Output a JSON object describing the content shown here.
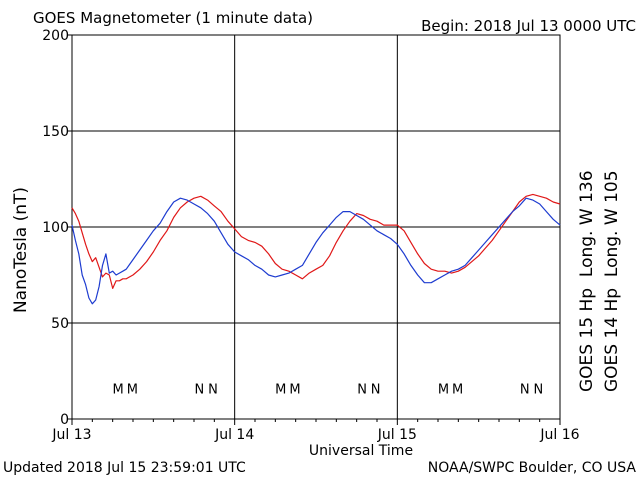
{
  "header": {
    "title": "GOES Magnetometer (1 minute data)",
    "begin": "Begin:  2018 Jul 13 0000 UTC"
  },
  "footer": {
    "updated": "Updated 2018 Jul 15 23:59:01 UTC",
    "credit": "NOAA/SWPC Boulder, CO USA"
  },
  "colors": {
    "goes15": "#e01818",
    "goes14": "#1e3cd0",
    "axis": "#000000"
  },
  "chart_data": {
    "type": "line",
    "title": "GOES Magnetometer (1 minute data)",
    "xlabel": "Universal Time",
    "ylabel": "NanoTesla (nT)",
    "xlim": [
      0,
      72
    ],
    "x_unit": "hours UTC from 2018 Jul 13 0000",
    "ylim": [
      0,
      200
    ],
    "yticks": [
      0,
      50,
      100,
      150,
      200
    ],
    "xtick_labels": [
      "Jul 13",
      "Jul 14",
      "Jul 15",
      "Jul 16"
    ],
    "xtick_hours": [
      0,
      24,
      48,
      72
    ],
    "grid": true,
    "legend_placement": "right side, vertical",
    "series": [
      {
        "name": "GOES 15 Hp  Long. W 136",
        "color": "#e01818",
        "x": [
          0,
          0.5,
          1,
          1.5,
          2,
          2.5,
          3,
          3.5,
          4,
          4.5,
          5,
          5.5,
          6,
          6.5,
          7,
          7.5,
          8,
          9,
          10,
          11,
          12,
          13,
          14,
          15,
          16,
          17,
          18,
          19,
          20,
          21,
          22,
          23,
          24,
          25,
          26,
          27,
          28,
          29,
          30,
          31,
          32,
          33,
          34,
          35,
          36,
          37,
          38,
          39,
          40,
          41,
          42,
          43,
          44,
          45,
          46,
          47,
          48,
          49,
          50,
          51,
          52,
          53,
          54,
          55,
          56,
          57,
          58,
          59,
          60,
          61,
          62,
          63,
          64,
          65,
          66,
          67,
          68,
          69,
          70,
          71,
          72
        ],
        "y": [
          110,
          107,
          103,
          97,
          91,
          86,
          82,
          84,
          79,
          74,
          76,
          75,
          68,
          72,
          72,
          73,
          73,
          75,
          78,
          82,
          87,
          93,
          98,
          105,
          110,
          113,
          115,
          116,
          114,
          111,
          108,
          103,
          99,
          95,
          93,
          92,
          90,
          86,
          81,
          78,
          77,
          75,
          73,
          76,
          78,
          80,
          85,
          92,
          98,
          103,
          107,
          106,
          104,
          103,
          101,
          101,
          101,
          98,
          92,
          86,
          81,
          78,
          77,
          77,
          76,
          77,
          79,
          82,
          85,
          89,
          93,
          98,
          103,
          108,
          113,
          116,
          117,
          116,
          115,
          113,
          112
        ]
      },
      {
        "name": "GOES 14 Hp  Long. W 105",
        "color": "#1e3cd0",
        "x": [
          0,
          0.5,
          1,
          1.5,
          2,
          2.5,
          3,
          3.5,
          4,
          4.5,
          5,
          5.5,
          6,
          6.5,
          7,
          7.5,
          8,
          9,
          10,
          11,
          12,
          13,
          14,
          15,
          16,
          17,
          18,
          19,
          20,
          21,
          22,
          23,
          24,
          25,
          26,
          27,
          28,
          29,
          30,
          31,
          32,
          33,
          34,
          35,
          36,
          37,
          38,
          39,
          40,
          41,
          42,
          43,
          44,
          45,
          46,
          47,
          48,
          49,
          50,
          51,
          52,
          53,
          54,
          55,
          56,
          57,
          58,
          59,
          60,
          61,
          62,
          63,
          64,
          65,
          66,
          67,
          68,
          69,
          70,
          71,
          72
        ],
        "y": [
          101,
          93,
          86,
          75,
          70,
          63,
          60,
          62,
          69,
          80,
          86,
          76,
          77,
          75,
          76,
          77,
          78,
          83,
          88,
          93,
          98,
          102,
          108,
          113,
          115,
          114,
          112,
          110,
          107,
          103,
          97,
          91,
          87,
          85,
          83,
          80,
          78,
          75,
          74,
          75,
          76,
          78,
          80,
          86,
          92,
          97,
          101,
          105,
          108,
          108,
          106,
          104,
          101,
          98,
          96,
          94,
          91,
          86,
          80,
          75,
          71,
          71,
          73,
          75,
          77,
          78,
          80,
          84,
          88,
          92,
          96,
          100,
          104,
          108,
          111,
          115,
          114,
          112,
          108,
          104,
          101
        ]
      }
    ],
    "annotations": [
      {
        "hour": 6.8,
        "series": "GOES 14 Hp  Long. W 105",
        "label": "M"
      },
      {
        "hour": 8.9,
        "series": "GOES 15 Hp  Long. W 136",
        "label": "M"
      },
      {
        "hour": 18.8,
        "series": "GOES 14 Hp  Long. W 105",
        "label": "N"
      },
      {
        "hour": 20.8,
        "series": "GOES 15 Hp  Long. W 136",
        "label": "N"
      },
      {
        "hour": 30.8,
        "series": "GOES 14 Hp  Long. W 105",
        "label": "M"
      },
      {
        "hour": 32.9,
        "series": "GOES 15 Hp  Long. W 136",
        "label": "M"
      },
      {
        "hour": 42.8,
        "series": "GOES 14 Hp  Long. W 105",
        "label": "N"
      },
      {
        "hour": 44.8,
        "series": "GOES 15 Hp  Long. W 136",
        "label": "N"
      },
      {
        "hour": 54.8,
        "series": "GOES 14 Hp  Long. W 105",
        "label": "M"
      },
      {
        "hour": 56.9,
        "series": "GOES 15 Hp  Long. W 136",
        "label": "M"
      },
      {
        "hour": 66.8,
        "series": "GOES 14 Hp  Long. W 105",
        "label": "N"
      },
      {
        "hour": 68.8,
        "series": "GOES 15 Hp  Long. W 136",
        "label": "N"
      }
    ],
    "annotation_level": 16
  }
}
